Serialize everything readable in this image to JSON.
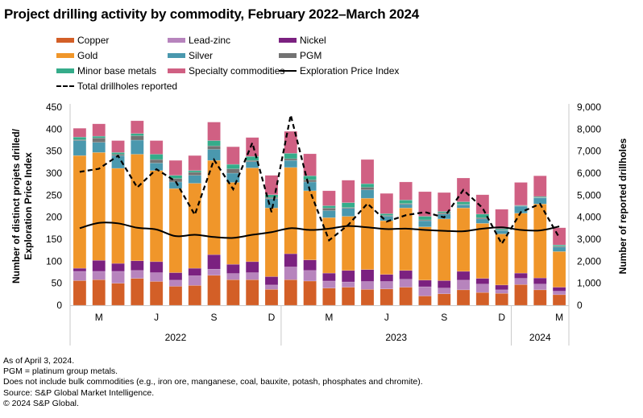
{
  "chart_data": {
    "type": "bar",
    "stacked": true,
    "title": "Project drilling activity by commodity, February 2022–March 2024",
    "ylabel_left": [
      "Number of distinct projets drilled/",
      "Exploration Price Index"
    ],
    "ylabel_right": "Number of reported drillholes",
    "ylim_left": [
      0,
      450
    ],
    "yticks_left": [
      0,
      50,
      100,
      150,
      200,
      250,
      300,
      350,
      400,
      450
    ],
    "ylim_right": [
      0,
      9000
    ],
    "yticks_right": [
      "0",
      "1,000",
      "2,000",
      "3,000",
      "4,000",
      "5,000",
      "6,000",
      "7,000",
      "8,000",
      "9,000"
    ],
    "categories": [
      "Feb 2022",
      "Mar 2022",
      "Apr 2022",
      "May 2022",
      "Jun 2022",
      "Jul 2022",
      "Aug 2022",
      "Sep 2022",
      "Oct 2022",
      "Nov 2022",
      "Dec 2022",
      "Jan 2023",
      "Feb 2023",
      "Mar 2023",
      "Apr 2023",
      "May 2023",
      "Jun 2023",
      "Jul 2023",
      "Aug 2023",
      "Sep 2023",
      "Oct 2023",
      "Nov 2023",
      "Dec 2023",
      "Jan 2024",
      "Feb 2024",
      "Mar 2024"
    ],
    "month_ticks": [
      {
        "index": 1,
        "label": "M"
      },
      {
        "index": 4,
        "label": "J"
      },
      {
        "index": 7,
        "label": "S"
      },
      {
        "index": 10,
        "label": "D"
      },
      {
        "index": 13,
        "label": "M"
      },
      {
        "index": 16,
        "label": "J"
      },
      {
        "index": 19,
        "label": "S"
      },
      {
        "index": 22,
        "label": "D"
      },
      {
        "index": 25,
        "label": "M"
      }
    ],
    "year_groups": [
      {
        "label": "2022",
        "start": 0,
        "end": 10
      },
      {
        "label": "2023",
        "start": 11,
        "end": 22
      },
      {
        "label": "2024",
        "start": 23,
        "end": 25
      }
    ],
    "series": [
      {
        "name": "Copper",
        "color": "#D35F27",
        "values": [
          56,
          58,
          50,
          61,
          54,
          43,
          45,
          68,
          58,
          58,
          36,
          58,
          55,
          39,
          41,
          36,
          37,
          41,
          21,
          26,
          35,
          29,
          27,
          47,
          35,
          24
        ]
      },
      {
        "name": "Lead-zinc",
        "color": "#B784BD",
        "values": [
          21,
          19,
          27,
          18,
          20,
          14,
          22,
          14,
          14,
          16,
          10,
          29,
          24,
          16,
          12,
          18,
          17,
          18,
          21,
          13,
          22,
          19,
          8,
          14,
          13,
          8
        ]
      },
      {
        "name": "Nickel",
        "color": "#7B2180",
        "values": [
          7,
          25,
          18,
          22,
          25,
          17,
          17,
          33,
          21,
          25,
          19,
          30,
          24,
          18,
          26,
          27,
          16,
          20,
          15,
          17,
          20,
          13,
          11,
          12,
          14,
          9
        ]
      },
      {
        "name": "Gold",
        "color": "#F0962A",
        "values": [
          256,
          245,
          216,
          242,
          207,
          191,
          193,
          214,
          186,
          213,
          156,
          196,
          157,
          126,
          123,
          162,
          122,
          142,
          121,
          140,
          144,
          125,
          116,
          136,
          168,
          81
        ]
      },
      {
        "name": "Silver",
        "color": "#4A98AE",
        "values": [
          34,
          23,
          29,
          32,
          17,
          15,
          18,
          25,
          21,
          14,
          21,
          16,
          20,
          16,
          18,
          19,
          10,
          8,
          14,
          11,
          7,
          10,
          8,
          16,
          14,
          10
        ]
      },
      {
        "name": "PGM",
        "color": "#737373",
        "values": [
          2,
          10,
          3,
          10,
          8,
          8,
          7,
          8,
          10,
          3,
          3,
          4,
          5,
          6,
          2,
          6,
          2,
          2,
          2,
          3,
          1,
          3,
          1,
          1,
          1,
          2
        ]
      },
      {
        "name": "Minor base metals",
        "color": "#35AC8A",
        "values": [
          6,
          4,
          4,
          5,
          12,
          7,
          4,
          12,
          10,
          9,
          6,
          12,
          9,
          5,
          11,
          8,
          4,
          8,
          8,
          3,
          6,
          8,
          3,
          1,
          2,
          3
        ]
      },
      {
        "name": "Specialty commodities",
        "color": "#D06083",
        "values": [
          20,
          28,
          27,
          29,
          31,
          34,
          34,
          42,
          40,
          43,
          44,
          50,
          50,
          34,
          51,
          55,
          46,
          41,
          56,
          43,
          54,
          44,
          44,
          52,
          47,
          39
        ]
      }
    ],
    "lines": [
      {
        "name": "Exploration Price Index",
        "axis": "left",
        "style": "solid",
        "color": "#000000",
        "values": [
          175,
          187,
          186,
          176,
          172,
          157,
          160,
          155,
          153,
          160,
          166,
          175,
          171,
          174,
          180,
          177,
          173,
          174,
          171,
          169,
          168,
          174,
          177,
          171,
          170,
          179
        ]
      },
      {
        "name": "Total drillholes reported",
        "axis": "right",
        "style": "dashed",
        "color": "#000000",
        "values": [
          6060,
          6200,
          6790,
          5350,
          6180,
          5630,
          4110,
          6610,
          5270,
          7380,
          4230,
          8640,
          5200,
          2950,
          3650,
          4620,
          3800,
          4090,
          4230,
          3990,
          5240,
          4420,
          2790,
          4230,
          4600,
          3070
        ]
      }
    ],
    "legend": {
      "placement": "top",
      "entries": [
        "Copper",
        "Lead-zinc",
        "Nickel",
        "Gold",
        "Silver",
        "PGM",
        "Minor base metals",
        "Specialty commodities",
        "Exploration Price Index",
        "Total drillholes reported"
      ]
    },
    "grid": false
  },
  "legend_labels": {
    "copper": "Copper",
    "lead_zinc": "Lead-zinc",
    "nickel": "Nickel",
    "gold": "Gold",
    "silver": "Silver",
    "pgm": "PGM",
    "minor": "Minor base metals",
    "specialty": "Specialty commodities",
    "epi": "Exploration Price Index",
    "drillholes": "Total drillholes reported"
  },
  "footnotes": [
    "As of April 3, 2024.",
    "PGM = platinum group metals.",
    "Does not include bulk commodities (e.g., iron ore, manganese, coal, bauxite, potash, phosphates and chromite).",
    "Source: S&P Global Market Intelligence.",
    "© 2024 S&P Global."
  ]
}
